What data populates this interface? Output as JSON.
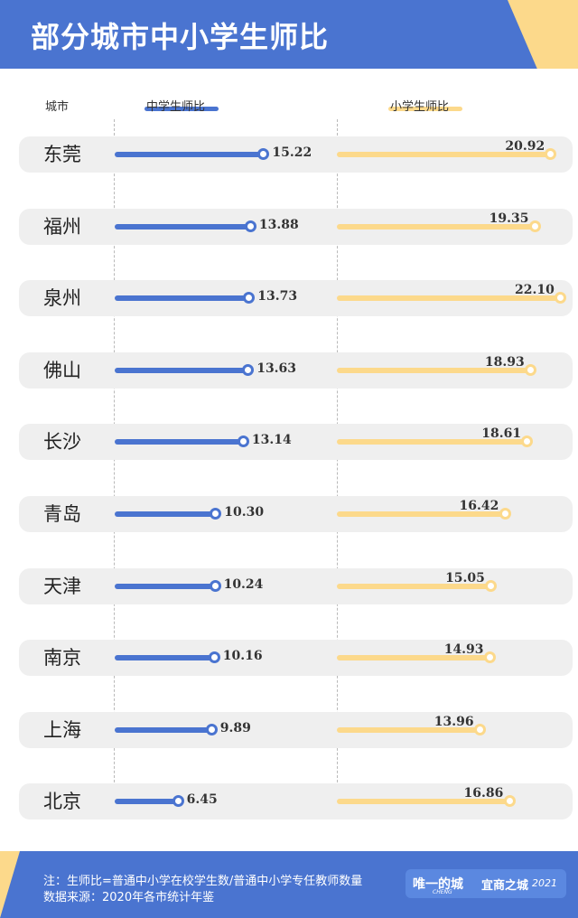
{
  "header": {
    "title": "部分城市中小学生师比"
  },
  "columns": {
    "city": "城市",
    "middle": "中学生师比",
    "primary": "小学生师比"
  },
  "colors": {
    "primary_blue": "#4a74d0",
    "accent_yellow": "#fcd98b",
    "row_bg": "#efefef"
  },
  "chart_data": {
    "type": "bar",
    "orientation": "horizontal",
    "categories": [
      "东莞",
      "福州",
      "泉州",
      "佛山",
      "长沙",
      "青岛",
      "天津",
      "南京",
      "上海",
      "北京"
    ],
    "series": [
      {
        "name": "中学生师比",
        "values": [
          15.22,
          13.88,
          13.73,
          13.63,
          13.14,
          10.3,
          10.24,
          10.16,
          9.89,
          6.45
        ]
      },
      {
        "name": "小学生师比",
        "values": [
          20.92,
          19.35,
          22.1,
          18.93,
          18.61,
          16.42,
          15.05,
          14.93,
          13.96,
          16.86
        ]
      }
    ],
    "labels": {
      "middle": [
        "15.22",
        "13.88",
        "13.73",
        "13.63",
        "13.14",
        "10.30",
        "10.24",
        "10.16",
        "9.89",
        "6.45"
      ],
      "primary": [
        "20.92",
        "19.35",
        "22.10",
        "18.93",
        "18.61",
        "16.42",
        "15.05",
        "14.93",
        "13.96",
        "16.86"
      ]
    }
  },
  "footer": {
    "note": "注：生师比=普通中小学在校学生数/普通中小学专任教师数量",
    "source": "数据来源：2020年各市统计年鉴",
    "brand_main": "唯一的城",
    "brand_sub": "CHENG",
    "brand_2": "宜商之城",
    "brand_year": "2021"
  }
}
